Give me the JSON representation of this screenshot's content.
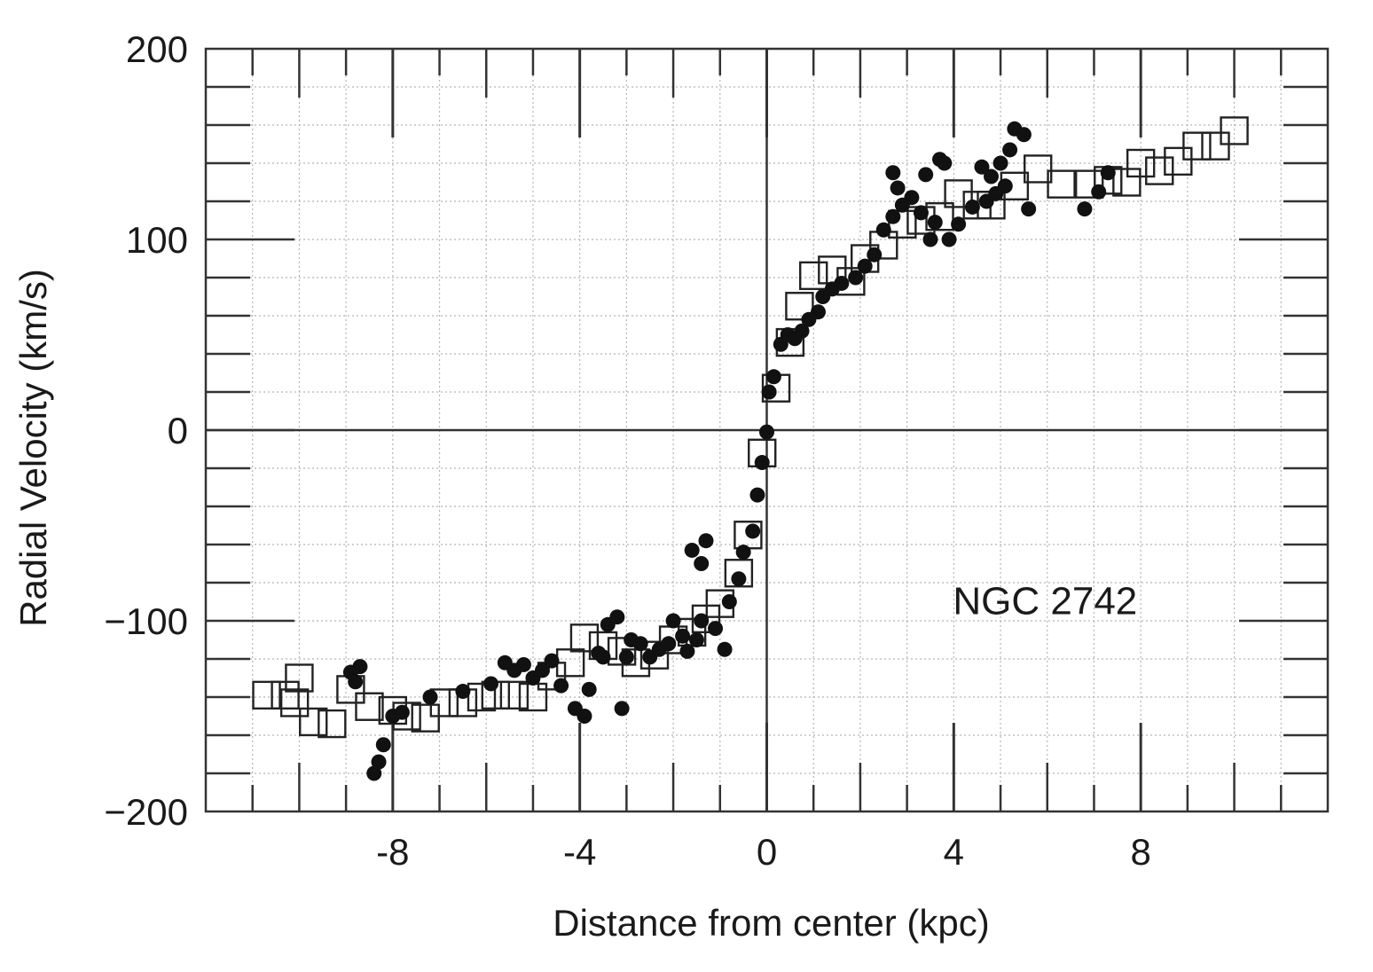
{
  "chart_data": {
    "type": "scatter",
    "title": "",
    "xlabel": "Distance from center (kpc)",
    "ylabel": "Radial Velocity (km/s)",
    "xlim": [
      -12,
      12
    ],
    "ylim": [
      -200,
      200
    ],
    "x_ticks": [
      -8,
      -4,
      0,
      4,
      8
    ],
    "x_tick_labels": [
      "-8",
      "-4",
      "0",
      "4",
      "8"
    ],
    "y_ticks": [
      -200,
      -100,
      0,
      100,
      200
    ],
    "y_tick_labels": [
      "−200",
      "−100",
      "0",
      "100",
      "200"
    ],
    "grid": true,
    "annotation": {
      "text": "NGC 2742",
      "x": 5.5,
      "y": -89
    },
    "series": [
      {
        "marker": "open-square",
        "color": "#222222",
        "points": [
          [
            -10.7,
            -139
          ],
          [
            -10.3,
            -139
          ],
          [
            -10.0,
            -130
          ],
          [
            -10.1,
            -143
          ],
          [
            -9.7,
            -153
          ],
          [
            -9.3,
            -154
          ],
          [
            -8.9,
            -136
          ],
          [
            -8.5,
            -145
          ],
          [
            -8.0,
            -147
          ],
          [
            -7.7,
            -150
          ],
          [
            -7.3,
            -151
          ],
          [
            -6.9,
            -143
          ],
          [
            -6.5,
            -143
          ],
          [
            -6.1,
            -140
          ],
          [
            -5.8,
            -139
          ],
          [
            -5.4,
            -139
          ],
          [
            -5.0,
            -140
          ],
          [
            -4.6,
            -129
          ],
          [
            -4.2,
            -122
          ],
          [
            -3.9,
            -109
          ],
          [
            -3.5,
            -113
          ],
          [
            -3.1,
            -116
          ],
          [
            -2.8,
            -122
          ],
          [
            -2.4,
            -118
          ],
          [
            -2.0,
            -110
          ],
          [
            -1.6,
            -106
          ],
          [
            -1.3,
            -99
          ],
          [
            -1.0,
            -91
          ],
          [
            -0.6,
            -75
          ],
          [
            -0.4,
            -55
          ],
          [
            -0.1,
            -12
          ],
          [
            0.2,
            22
          ],
          [
            0.5,
            46
          ],
          [
            0.7,
            65
          ],
          [
            1.0,
            81
          ],
          [
            1.4,
            84
          ],
          [
            1.8,
            78
          ],
          [
            2.1,
            90
          ],
          [
            2.5,
            97
          ],
          [
            2.9,
            108
          ],
          [
            3.3,
            110
          ],
          [
            3.7,
            112
          ],
          [
            4.1,
            124
          ],
          [
            4.5,
            118
          ],
          [
            4.8,
            118
          ],
          [
            5.3,
            128
          ],
          [
            5.8,
            137
          ],
          [
            6.3,
            129
          ],
          [
            6.9,
            129
          ],
          [
            7.3,
            131
          ],
          [
            7.7,
            130
          ],
          [
            8.0,
            140
          ],
          [
            8.4,
            136
          ],
          [
            8.8,
            141
          ],
          [
            9.2,
            149
          ],
          [
            9.6,
            149
          ],
          [
            10.0,
            157
          ]
        ]
      },
      {
        "marker": "filled-circle",
        "color": "#111111",
        "points": [
          [
            -8.9,
            -127
          ],
          [
            -8.7,
            -124
          ],
          [
            -8.8,
            -132
          ],
          [
            -8.4,
            -180
          ],
          [
            -8.3,
            -174
          ],
          [
            -8.2,
            -165
          ],
          [
            -8.0,
            -150
          ],
          [
            -7.8,
            -148
          ],
          [
            -7.2,
            -140
          ],
          [
            -6.5,
            -137
          ],
          [
            -5.9,
            -133
          ],
          [
            -5.6,
            -122
          ],
          [
            -5.4,
            -126
          ],
          [
            -5.2,
            -123
          ],
          [
            -5.0,
            -130
          ],
          [
            -4.8,
            -126
          ],
          [
            -4.6,
            -121
          ],
          [
            -4.4,
            -134
          ],
          [
            -4.1,
            -146
          ],
          [
            -3.9,
            -150
          ],
          [
            -3.8,
            -136
          ],
          [
            -3.6,
            -117
          ],
          [
            -3.4,
            -102
          ],
          [
            -3.2,
            -98
          ],
          [
            -3.5,
            -119
          ],
          [
            -3.0,
            -119
          ],
          [
            -3.1,
            -146
          ],
          [
            -2.9,
            -110
          ],
          [
            -2.7,
            -112
          ],
          [
            -2.5,
            -119
          ],
          [
            -2.3,
            -115
          ],
          [
            -2.1,
            -112
          ],
          [
            -2.0,
            -100
          ],
          [
            -1.8,
            -108
          ],
          [
            -1.7,
            -116
          ],
          [
            -1.5,
            -110
          ],
          [
            -1.6,
            -63
          ],
          [
            -1.4,
            -70
          ],
          [
            -1.3,
            -58
          ],
          [
            -1.4,
            -100
          ],
          [
            -1.1,
            -104
          ],
          [
            -0.9,
            -115
          ],
          [
            -0.8,
            -90
          ],
          [
            -0.6,
            -78
          ],
          [
            -0.5,
            -64
          ],
          [
            -0.3,
            -53
          ],
          [
            -0.2,
            -34
          ],
          [
            -0.1,
            -17
          ],
          [
            0.0,
            -1
          ],
          [
            0.05,
            20
          ],
          [
            0.15,
            28
          ],
          [
            0.3,
            45
          ],
          [
            0.45,
            50
          ],
          [
            0.6,
            48
          ],
          [
            0.75,
            52
          ],
          [
            0.9,
            58
          ],
          [
            1.1,
            62
          ],
          [
            1.2,
            70
          ],
          [
            1.4,
            74
          ],
          [
            1.6,
            77
          ],
          [
            1.9,
            80
          ],
          [
            2.1,
            86
          ],
          [
            2.3,
            92
          ],
          [
            2.5,
            105
          ],
          [
            2.7,
            112
          ],
          [
            2.9,
            118
          ],
          [
            2.8,
            127
          ],
          [
            2.7,
            135
          ],
          [
            3.1,
            122
          ],
          [
            3.3,
            114
          ],
          [
            3.6,
            109
          ],
          [
            3.5,
            100
          ],
          [
            3.9,
            100
          ],
          [
            4.1,
            108
          ],
          [
            4.4,
            117
          ],
          [
            4.7,
            120
          ],
          [
            4.9,
            124
          ],
          [
            5.1,
            128
          ],
          [
            5.0,
            140
          ],
          [
            5.2,
            147
          ],
          [
            5.3,
            158
          ],
          [
            5.5,
            155
          ],
          [
            5.6,
            116
          ],
          [
            3.7,
            142
          ],
          [
            4.6,
            138
          ],
          [
            4.8,
            133
          ],
          [
            3.4,
            134
          ],
          [
            3.8,
            140
          ],
          [
            6.8,
            116
          ],
          [
            7.1,
            125
          ],
          [
            7.3,
            135
          ]
        ]
      }
    ]
  }
}
